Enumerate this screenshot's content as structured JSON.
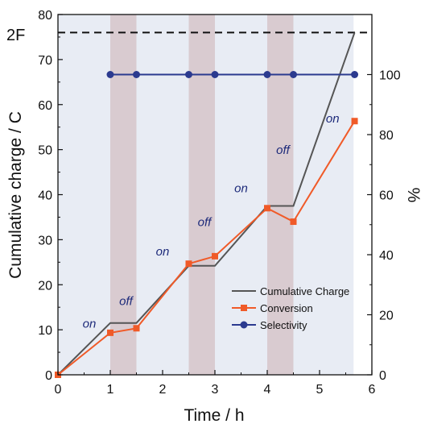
{
  "chart_data": {
    "type": "line",
    "title": "",
    "xlabel": "Time / h",
    "ylabel_left": "Cumulative charge / C",
    "ylabel_right": "%",
    "xlim": [
      0,
      6
    ],
    "ylim_left": [
      0,
      80
    ],
    "ylim_right": [
      0,
      120
    ],
    "x_ticks": [
      "0",
      "1",
      "2",
      "3",
      "4",
      "5",
      "6"
    ],
    "y_left_ticks": [
      "0",
      "10",
      "20",
      "30",
      "40",
      "50",
      "60",
      "70",
      "80"
    ],
    "y_right_ticks": [
      "0",
      "20",
      "40",
      "60",
      "80",
      "100"
    ],
    "off_intervals": [
      [
        1.0,
        1.5
      ],
      [
        2.5,
        3.0
      ],
      [
        4.0,
        4.5
      ]
    ],
    "on_intervals": [
      [
        0,
        1.0
      ],
      [
        1.5,
        2.5
      ],
      [
        3.0,
        4.0
      ],
      [
        4.5,
        5.65
      ]
    ],
    "phase_labels": [
      {
        "text": "on",
        "x": 0.6,
        "y": 10.5
      },
      {
        "text": "off",
        "x": 1.3,
        "y": 15.5
      },
      {
        "text": "on",
        "x": 2.0,
        "y": 26.5
      },
      {
        "text": "off",
        "x": 2.8,
        "y": 33.0
      },
      {
        "text": "on",
        "x": 3.5,
        "y": 40.5
      },
      {
        "text": "off",
        "x": 4.3,
        "y": 49.0
      },
      {
        "text": "on",
        "x": 5.25,
        "y": 56.0
      }
    ],
    "reference_line": {
      "label": "2F",
      "y": 76,
      "style": "dashed",
      "color": "#111111"
    },
    "series": [
      {
        "name": "Cumulative Charge",
        "axis": "left",
        "color": "#555555",
        "marker": "none",
        "x": [
          0,
          1.0,
          1.5,
          2.5,
          3.0,
          4.0,
          4.5,
          5.67
        ],
        "y": [
          0,
          11.5,
          11.5,
          24.2,
          24.2,
          37.5,
          37.5,
          76.0
        ]
      },
      {
        "name": "Conversion",
        "axis": "right",
        "color": "#f05a28",
        "marker": "square",
        "x": [
          0,
          1.0,
          1.5,
          2.5,
          3.0,
          4.0,
          4.5,
          5.67
        ],
        "y": [
          0,
          14.0,
          15.5,
          37.0,
          39.5,
          55.5,
          51.0,
          84.5
        ]
      },
      {
        "name": "Selectivity",
        "axis": "right",
        "color": "#2b3a8f",
        "marker": "circle",
        "x": [
          1.0,
          1.5,
          2.5,
          3.0,
          4.0,
          4.5,
          5.67
        ],
        "y": [
          100,
          100,
          100,
          100,
          100,
          100,
          100
        ]
      }
    ],
    "legend": {
      "placement": "lower-right",
      "entries": [
        "Cumulative Charge",
        "Conversion",
        "Selectivity"
      ]
    },
    "colors": {
      "on_band": "#e8ecf4",
      "off_band": "#d9cbd0"
    }
  }
}
